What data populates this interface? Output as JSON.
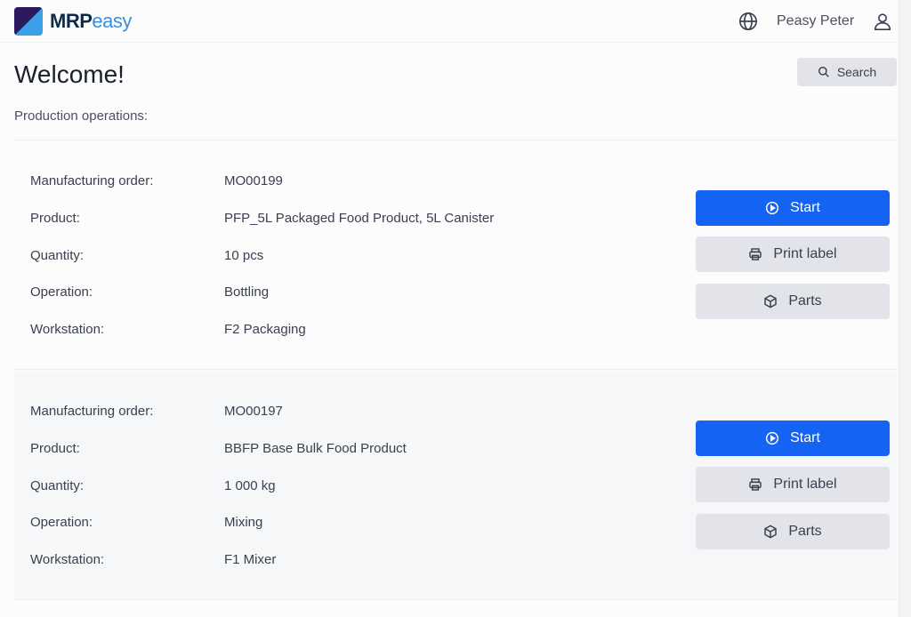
{
  "header": {
    "logo_bold": "MRP",
    "logo_light": "easy",
    "user_name": "Peasy Peter"
  },
  "page": {
    "title": "Welcome!",
    "search_label": "Search",
    "subtitle": "Production operations:"
  },
  "labels": {
    "mo": "Manufacturing order:",
    "product": "Product:",
    "quantity": "Quantity:",
    "operation": "Operation:",
    "workstation": "Workstation:"
  },
  "buttons": {
    "start": "Start",
    "print": "Print label",
    "parts": "Parts"
  },
  "colors": {
    "primary": "#1463f2",
    "secondary": "#e2e4e9"
  },
  "operations": [
    {
      "mo": "MO00199",
      "product": "PFP_5L Packaged Food Product, 5L Canister",
      "quantity": "10 pcs",
      "operation": "Bottling",
      "workstation": "F2 Packaging"
    },
    {
      "mo": "MO00197",
      "product": "BBFP Base Bulk Food Product",
      "quantity": "1 000 kg",
      "operation": "Mixing",
      "workstation": "F1 Mixer"
    }
  ]
}
